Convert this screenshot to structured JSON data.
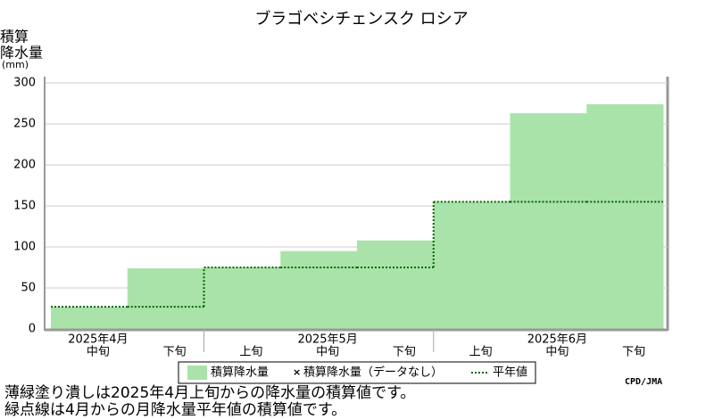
{
  "chart_data": {
    "type": "step-area",
    "title": "ブラゴベシチェンスク ロシア",
    "ylabel": [
      "積算",
      "降水量",
      "(mm)"
    ],
    "categories": [
      "中旬",
      "下旬",
      "上旬",
      "中旬",
      "下旬",
      "上旬",
      "中旬",
      "下旬"
    ],
    "months": [
      "2025年4月",
      null,
      null,
      "2025年5月",
      null,
      null,
      "2025年6月",
      null
    ],
    "series": [
      {
        "name": "積算降水量",
        "color": "#aae3aa",
        "values": [
          27,
          74,
          75,
          95,
          108,
          155,
          263,
          274
        ]
      },
      {
        "name": "平年値",
        "color": "#006600",
        "values": [
          27,
          27,
          75,
          75,
          75,
          155,
          155,
          155
        ]
      }
    ],
    "nodata_label": "積算降水量（データなし）",
    "ylim": [
      0,
      300
    ],
    "yticks": [
      0,
      50,
      100,
      150,
      200,
      250,
      300
    ],
    "grid": true,
    "credit": "CPD/JMA",
    "notes": [
      "薄緑塗り潰しは2025年4月上旬からの降水量の積算値です。",
      "緑点線は4月からの月降水量平年値の積算値です。"
    ]
  }
}
